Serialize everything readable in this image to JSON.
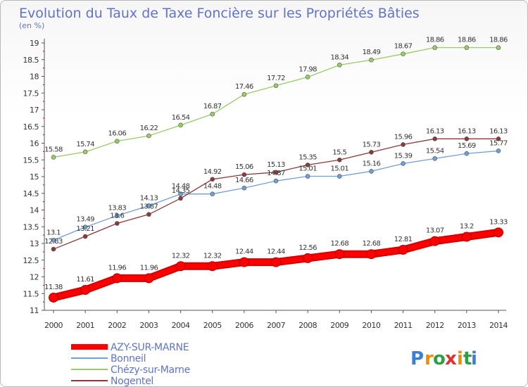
{
  "chart_data": {
    "type": "line",
    "title": "Evolution du Taux de Taxe Foncière sur les Propriétés Bâties",
    "subtitle": "(en %)",
    "x": [
      "2000",
      "2001",
      "2002",
      "2003",
      "2004",
      "2005",
      "2006",
      "2007",
      "2008",
      "2009",
      "2010",
      "2011",
      "2012",
      "2013",
      "2014"
    ],
    "ylim": [
      11,
      19
    ],
    "yticks": [
      "11",
      "11.5",
      "12",
      "12.5",
      "13",
      "13.5",
      "14",
      "14.5",
      "15",
      "15.5",
      "16",
      "16.5",
      "17",
      "17.5",
      "18",
      "18.5",
      "19"
    ],
    "grid": false,
    "legend_position": "bottom-left",
    "series": [
      {
        "name": "AZY-SUR-MARNE",
        "color": "#ff0000",
        "values": [
          11.38,
          11.61,
          11.96,
          11.96,
          12.32,
          12.32,
          12.44,
          12.44,
          12.56,
          12.68,
          12.68,
          12.81,
          13.07,
          13.2,
          13.33
        ],
        "labels": [
          "11.38",
          "11.61",
          "11.96",
          "11.96",
          "12.32",
          "12.32",
          "12.44",
          "12.44",
          "12.56",
          "12.68",
          "12.68",
          "12.81",
          "13.07",
          "13.2",
          "13.33"
        ]
      },
      {
        "name": "Bonneil",
        "color": "#6f9fd8",
        "values": [
          13.1,
          13.49,
          13.83,
          14.13,
          14.48,
          14.48,
          14.66,
          14.87,
          15.01,
          15.01,
          15.16,
          15.39,
          15.54,
          15.69,
          15.77
        ],
        "labels": [
          "13.1",
          "13.49",
          "13.83",
          "14.13",
          "14.48",
          "14.48",
          "14.66",
          "14.87",
          "15.01",
          "15.01",
          "15.16",
          "15.39",
          "15.54",
          "15.69",
          "15.77"
        ]
      },
      {
        "name": "Chézy-sur-Marne",
        "color": "#99cc66",
        "values": [
          15.58,
          15.74,
          16.06,
          16.22,
          16.54,
          16.87,
          17.46,
          17.72,
          17.98,
          18.34,
          18.49,
          18.67,
          18.86,
          18.86,
          18.86
        ],
        "labels": [
          "15.58",
          "15.74",
          "16.06",
          "16.22",
          "16.54",
          "16.87",
          "17.46",
          "17.72",
          "17.98",
          "18.34",
          "18.49",
          "18.67",
          "18.86",
          "18.86",
          "18.86"
        ]
      },
      {
        "name": "Nogentel",
        "color": "#8b3a3a",
        "values": [
          12.83,
          13.21,
          13.6,
          13.87,
          14.35,
          14.92,
          15.06,
          15.13,
          15.35,
          15.5,
          15.73,
          15.96,
          16.13,
          16.13,
          16.13
        ],
        "labels": [
          "12.83",
          "13.21",
          "13.6",
          "13.87",
          "14.35",
          "14.92",
          "15.06",
          "15.13",
          "15.35",
          "15.5",
          "15.73",
          "15.96",
          "16.13",
          "16.13",
          "16.13"
        ]
      }
    ]
  },
  "brand": {
    "letters": [
      "P",
      "r",
      "o",
      "x",
      "i",
      "t",
      "i"
    ],
    "colors": [
      "#3b7fd4",
      "#f08c00",
      "#2f9e44",
      "#e03131",
      "#f08c00",
      "#2f9e44",
      "#3b7fd4"
    ]
  }
}
